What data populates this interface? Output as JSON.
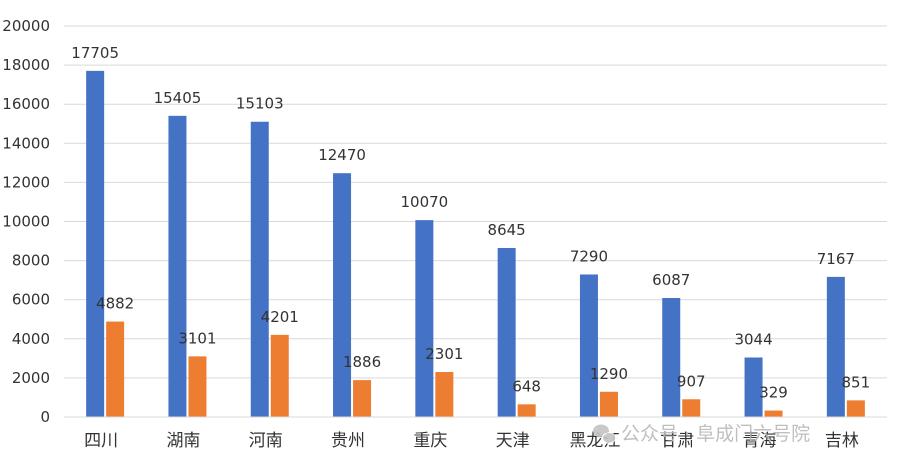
{
  "chart_data": {
    "type": "bar",
    "title": "",
    "xlabel": "",
    "ylabel": "",
    "ylim": [
      0,
      20000
    ],
    "yticks": [
      0,
      2000,
      4000,
      6000,
      8000,
      10000,
      12000,
      14000,
      16000,
      18000,
      20000
    ],
    "grid": true,
    "legend": "none",
    "categories": [
      "四川",
      "湖南",
      "河南",
      "贵州",
      "重庆",
      "天津",
      "黑龙江",
      "甘肃",
      "青海",
      "吉林"
    ],
    "series": [
      {
        "color": "#4472C4",
        "values": [
          17705,
          15405,
          15103,
          12470,
          10070,
          8645,
          7290,
          6087,
          3044,
          7167
        ]
      },
      {
        "color": "#ED7D31",
        "values": [
          4882,
          3101,
          4201,
          1886,
          2301,
          648,
          1290,
          907,
          329,
          851
        ]
      }
    ]
  },
  "watermark": {
    "text": "公众号 · 阜成门六号院",
    "icon": "wechat-icon"
  }
}
